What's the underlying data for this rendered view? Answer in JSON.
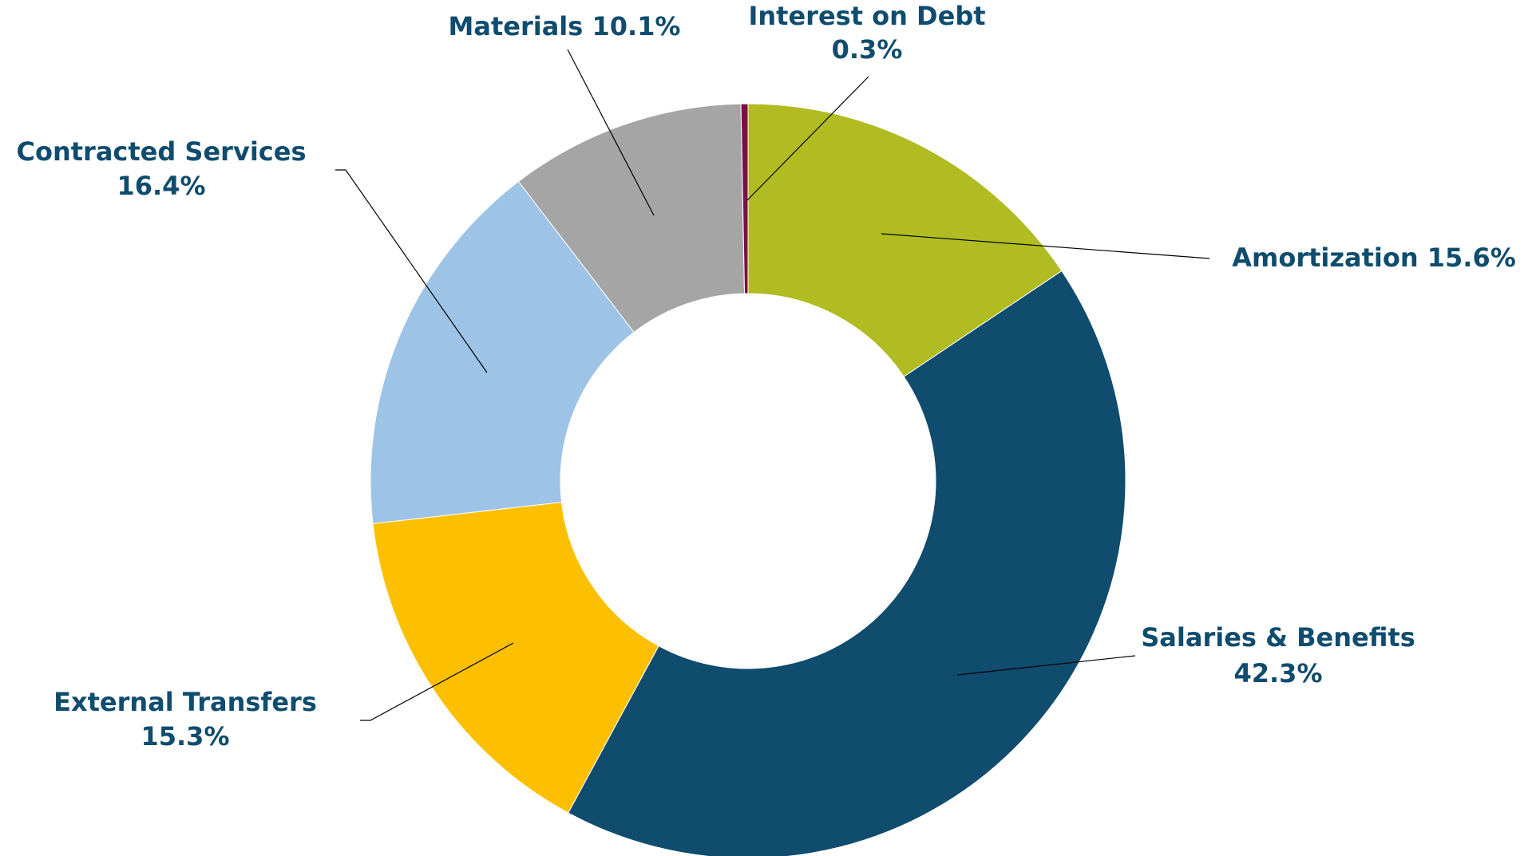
{
  "chart_data": {
    "type": "donut",
    "categories": [
      "Amortization",
      "Salaries & Benefits",
      "External Transfers",
      "Contracted Services",
      "Materials",
      "Interest on Debt"
    ],
    "values": [
      15.6,
      42.3,
      15.3,
      16.4,
      10.1,
      0.3
    ],
    "value_labels": [
      "15.6%",
      "42.3%",
      "15.3%",
      "16.4%",
      "10.1%",
      "0.3%"
    ],
    "colors": [
      "#b0bc22",
      "#0f4c6e",
      "#fdc000",
      "#9dc3e6",
      "#a5a5a5",
      "#7b1040"
    ]
  }
}
